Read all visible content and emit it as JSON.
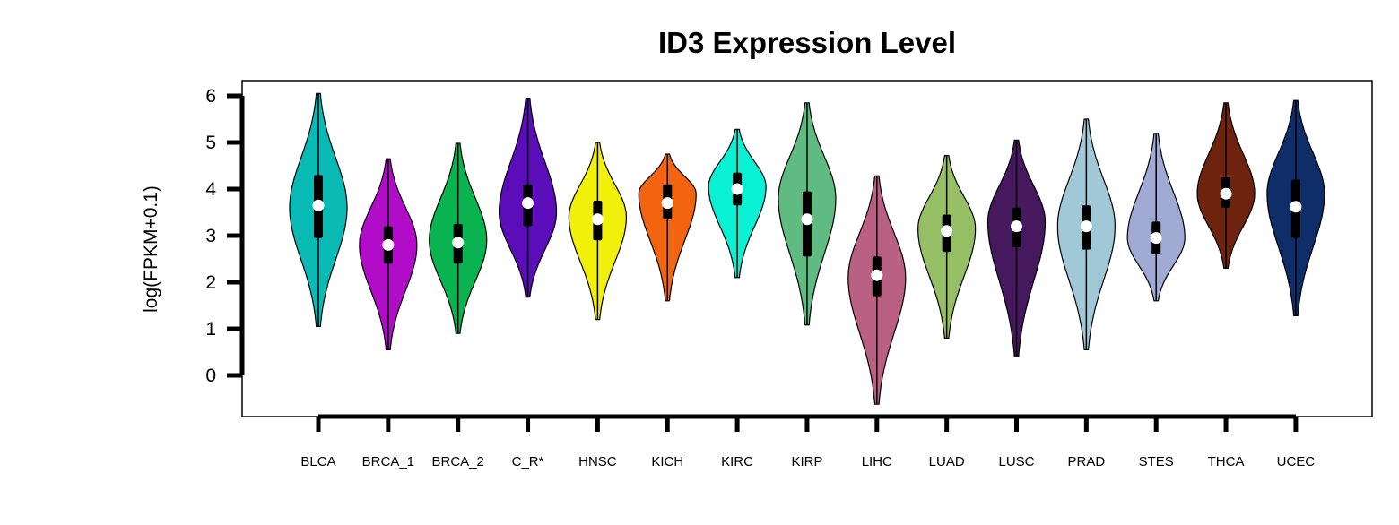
{
  "chart_data": {
    "type": "violin",
    "title": "ID3 Expression Level",
    "ylabel": "log(FPKM+0.1)",
    "xlabel": "",
    "ylim": [
      -0.9,
      6.3
    ],
    "yticks": [
      "0",
      "1",
      "2",
      "3",
      "4",
      "5",
      "6"
    ],
    "grid": false,
    "categories": [
      "BLCA",
      "BRCA_1",
      "BRCA_2",
      "C_R*",
      "HNSC",
      "KICH",
      "KIRC",
      "KIRP",
      "LIHC",
      "LUAD",
      "LUSC",
      "PRAD",
      "STES",
      "THCA",
      "UCEC"
    ],
    "colors": [
      "#0ABAB5",
      "#B10DC9",
      "#09B350",
      "#5A0DB9",
      "#F0F00A",
      "#F26410",
      "#0AF0D2",
      "#5FBB82",
      "#BA6082",
      "#96BE64",
      "#46195F",
      "#A0C8D7",
      "#A0AAD2",
      "#6E230F",
      "#0F2D69"
    ],
    "violins": [
      {
        "min": 1.05,
        "max": 6.05,
        "q1": 2.95,
        "median": 3.65,
        "q3": 4.3,
        "mode": 3.6
      },
      {
        "min": 0.55,
        "max": 4.65,
        "q1": 2.4,
        "median": 2.8,
        "q3": 3.2,
        "mode": 2.8
      },
      {
        "min": 0.9,
        "max": 4.98,
        "q1": 2.4,
        "median": 2.85,
        "q3": 3.25,
        "mode": 2.9
      },
      {
        "min": 1.68,
        "max": 5.95,
        "q1": 3.2,
        "median": 3.7,
        "q3": 4.1,
        "mode": 3.5
      },
      {
        "min": 1.2,
        "max": 5.0,
        "q1": 2.9,
        "median": 3.35,
        "q3": 3.75,
        "mode": 3.4
      },
      {
        "min": 1.6,
        "max": 4.75,
        "q1": 3.35,
        "median": 3.7,
        "q3": 4.1,
        "mode": 3.9
      },
      {
        "min": 2.1,
        "max": 5.28,
        "q1": 3.65,
        "median": 4.0,
        "q3": 4.35,
        "mode": 4.05
      },
      {
        "min": 1.08,
        "max": 5.85,
        "q1": 2.55,
        "median": 3.35,
        "q3": 3.95,
        "mode": 3.8
      },
      {
        "min": -0.62,
        "max": 4.28,
        "q1": 1.7,
        "median": 2.15,
        "q3": 2.55,
        "mode": 2.1
      },
      {
        "min": 0.8,
        "max": 4.72,
        "q1": 2.65,
        "median": 3.1,
        "q3": 3.45,
        "mode": 3.15
      },
      {
        "min": 0.4,
        "max": 5.05,
        "q1": 2.75,
        "median": 3.2,
        "q3": 3.6,
        "mode": 3.3
      },
      {
        "min": 0.55,
        "max": 5.5,
        "q1": 2.7,
        "median": 3.2,
        "q3": 3.65,
        "mode": 3.2
      },
      {
        "min": 1.6,
        "max": 5.2,
        "q1": 2.6,
        "median": 2.95,
        "q3": 3.3,
        "mode": 2.95
      },
      {
        "min": 2.3,
        "max": 5.85,
        "q1": 3.6,
        "median": 3.9,
        "q3": 4.25,
        "mode": 3.9
      },
      {
        "min": 1.28,
        "max": 5.9,
        "q1": 2.95,
        "median": 3.62,
        "q3": 4.2,
        "mode": 3.9
      }
    ]
  }
}
